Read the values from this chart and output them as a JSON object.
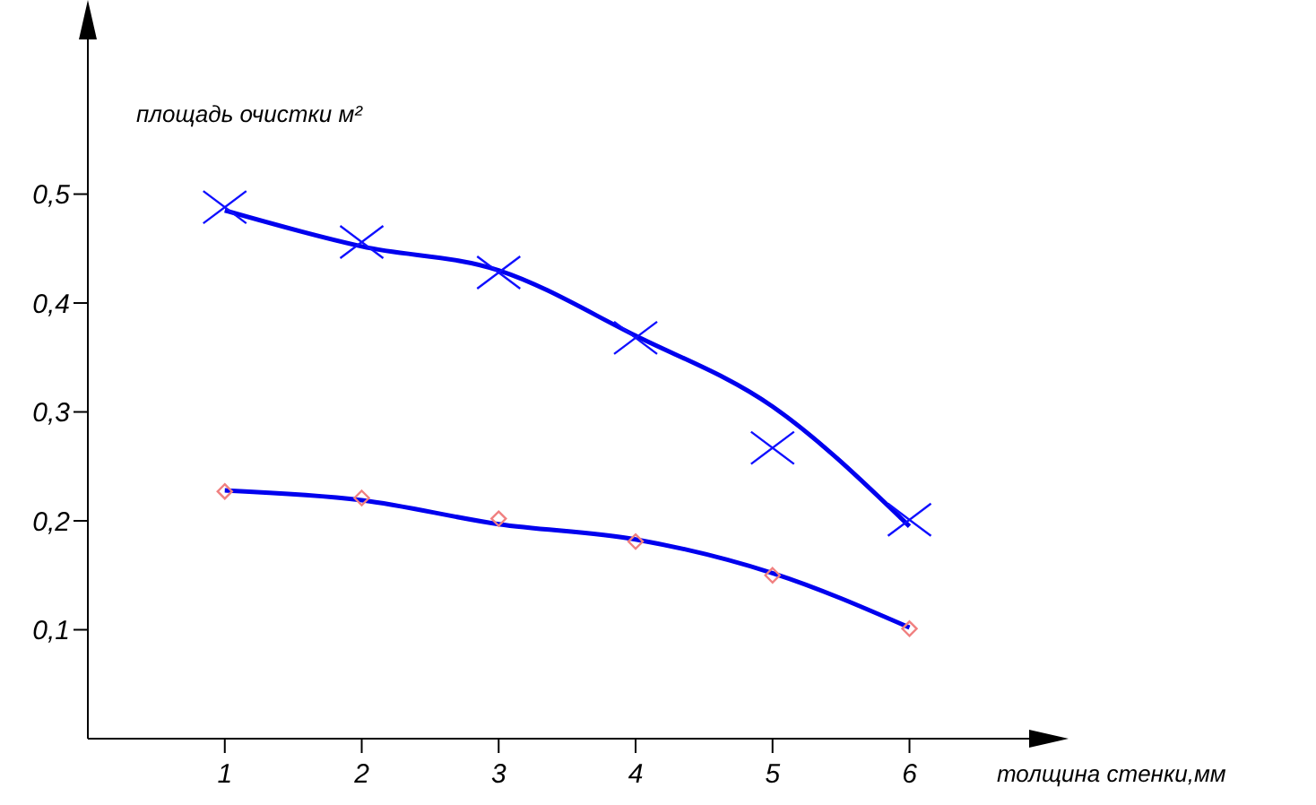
{
  "chart_data": {
    "type": "scatter",
    "xlabel": "толщина стенки,мм",
    "ylabel": "площадь очистки м²",
    "xlim": [
      0,
      6.9
    ],
    "xticks": [
      1,
      2,
      3,
      4,
      5,
      6
    ],
    "ylim": [
      0,
      0.67
    ],
    "yticks": [
      {
        "value": 0.1,
        "label": "0,1"
      },
      {
        "value": 0.2,
        "label": "0,2"
      },
      {
        "value": 0.3,
        "label": "0,3"
      },
      {
        "value": 0.4,
        "label": "0,4"
      },
      {
        "value": 0.5,
        "label": "0,5"
      }
    ],
    "grid": false,
    "series": [
      {
        "marker": "cross",
        "color": "#1010ff",
        "x": [
          1,
          2,
          3,
          4,
          5,
          6
        ],
        "values": [
          0.488,
          0.456,
          0.428,
          0.368,
          0.267,
          0.201
        ]
      },
      {
        "marker": "diamond",
        "color": "#f08080",
        "x": [
          1,
          2,
          3,
          4,
          5,
          6
        ],
        "values": [
          0.227,
          0.221,
          0.202,
          0.181,
          0.15,
          0.101
        ]
      },
      {
        "type": "line",
        "marker": "none",
        "line_style": "solid",
        "color": "#0000ee",
        "x": [
          1,
          2,
          3,
          4,
          5,
          6
        ],
        "values": [
          0.485,
          0.452,
          0.43,
          0.37,
          0.305,
          0.195
        ]
      },
      {
        "type": "line",
        "marker": "none",
        "line_style": "solid",
        "color": "#0000ee",
        "x": [
          1,
          2,
          3,
          4,
          5,
          6
        ],
        "values": [
          0.228,
          0.219,
          0.197,
          0.183,
          0.152,
          0.102
        ]
      }
    ]
  }
}
